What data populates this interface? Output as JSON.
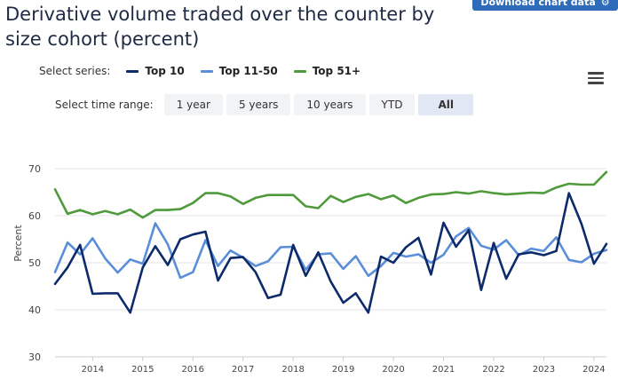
{
  "title": "Derivative volume traded over the counter by size cohort (percent)",
  "download_label": "Download chart data",
  "download_icon": "gear-icon",
  "series_label": "Select series:",
  "range_label": "Select time range:",
  "ranges": [
    "1 year",
    "5 years",
    "10 years",
    "YTD",
    "All"
  ],
  "active_range": "All",
  "menu_icon": "hamburger-menu-icon",
  "chart_data": {
    "type": "line",
    "ylabel": "Percent",
    "xlabel": "",
    "ylim": [
      30,
      70
    ],
    "xlim": [
      2013.25,
      2024.25
    ],
    "yticks": [
      30,
      40,
      50,
      60,
      70
    ],
    "xticks": [
      "2014",
      "2015",
      "2016",
      "2017",
      "2018",
      "2019",
      "2020",
      "2021",
      "2022",
      "2023",
      "2024"
    ],
    "grid": true,
    "legend": "top",
    "x": [
      2013.25,
      2013.5,
      2013.75,
      2014.0,
      2014.25,
      2014.5,
      2014.75,
      2015.0,
      2015.25,
      2015.5,
      2015.75,
      2016.0,
      2016.25,
      2016.5,
      2016.75,
      2017.0,
      2017.25,
      2017.5,
      2017.75,
      2018.0,
      2018.25,
      2018.5,
      2018.75,
      2019.0,
      2019.25,
      2019.5,
      2019.75,
      2020.0,
      2020.25,
      2020.5,
      2020.75,
      2021.0,
      2021.25,
      2021.5,
      2021.75,
      2022.0,
      2022.25,
      2022.5,
      2022.75,
      2023.0,
      2023.25,
      2023.5,
      2023.75,
      2024.0,
      2024.25
    ],
    "series": [
      {
        "name": "Top 10",
        "color": "#0d2a6b",
        "values": [
          45.5,
          49.0,
          53.8,
          43.4,
          43.5,
          43.5,
          39.4,
          49.0,
          53.5,
          49.5,
          55.0,
          56.0,
          56.6,
          46.2,
          51.0,
          51.2,
          48.0,
          42.5,
          43.2,
          53.8,
          47.2,
          52.2,
          46.0,
          41.5,
          43.5,
          39.4,
          51.3,
          50.0,
          53.3,
          55.3,
          47.5,
          58.5,
          53.4,
          56.9,
          44.2,
          54.2,
          46.6,
          51.8,
          52.2,
          51.6,
          52.5,
          64.8,
          58.3,
          49.8,
          54.0
        ]
      },
      {
        "name": "Top 11-50",
        "color": "#5b8ed8",
        "values": [
          48.0,
          54.3,
          51.8,
          55.2,
          50.9,
          47.9,
          50.7,
          49.8,
          58.4,
          53.9,
          46.8,
          48.0,
          54.8,
          49.3,
          52.6,
          51.1,
          49.3,
          50.3,
          53.3,
          53.4,
          48.5,
          51.8,
          52.0,
          48.7,
          51.4,
          47.2,
          49.3,
          52.1,
          51.3,
          51.8,
          50.0,
          51.7,
          55.6,
          57.4,
          53.6,
          52.8,
          54.8,
          51.6,
          53.0,
          52.5,
          55.4,
          50.6,
          50.1,
          51.9,
          52.7
        ]
      },
      {
        "name": "Top 51+",
        "color": "#4f9a3b",
        "values": [
          65.6,
          60.4,
          61.2,
          60.3,
          61.0,
          60.3,
          61.3,
          59.6,
          61.2,
          61.2,
          61.4,
          62.7,
          64.8,
          64.8,
          64.1,
          62.5,
          63.8,
          64.4,
          64.4,
          64.4,
          62.0,
          61.6,
          64.2,
          62.9,
          64.0,
          64.6,
          63.5,
          64.3,
          62.7,
          63.8,
          64.5,
          64.6,
          65.0,
          64.7,
          65.2,
          64.8,
          64.5,
          64.7,
          64.9,
          64.8,
          66.0,
          66.8,
          66.6,
          66.6,
          69.3
        ]
      }
    ]
  }
}
